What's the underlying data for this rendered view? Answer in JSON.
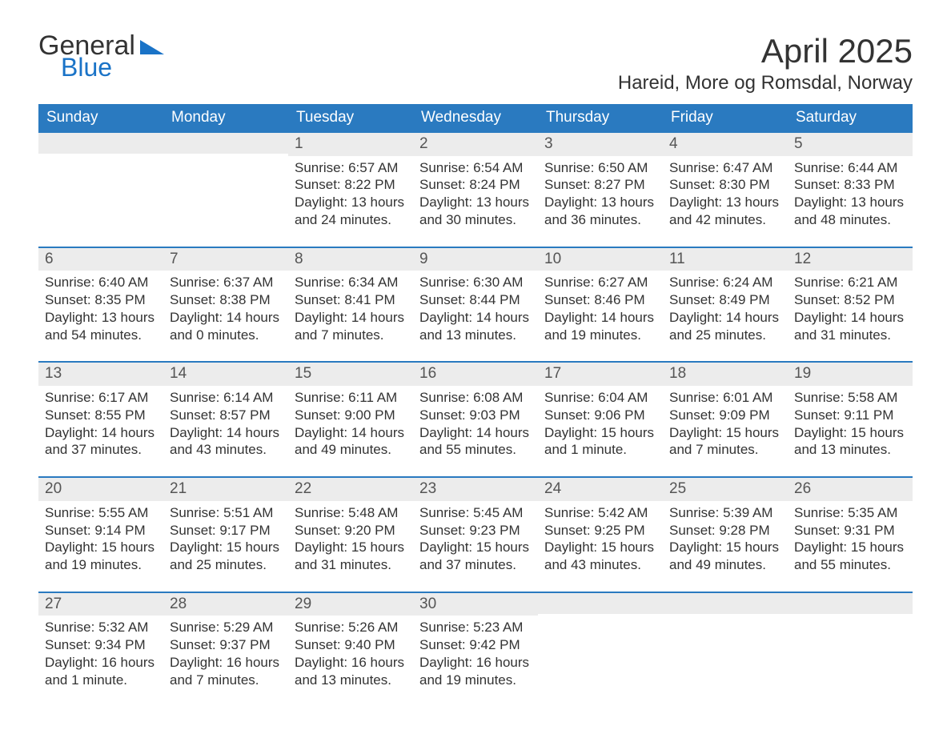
{
  "logo": {
    "general": "General",
    "blue": "Blue"
  },
  "title": "April 2025",
  "location": "Hareid, More og Romsdal, Norway",
  "colors": {
    "header_bg": "#2a7ac0",
    "header_fg": "#ffffff",
    "daynum_bg": "#ececec",
    "row_border": "#2a7ac0",
    "text": "#333333",
    "logo_blue": "#1a73c7"
  },
  "fonts": {
    "title_size_pt": 32,
    "location_size_pt": 18,
    "dow_size_pt": 14,
    "body_size_pt": 13
  },
  "days_of_week": [
    "Sunday",
    "Monday",
    "Tuesday",
    "Wednesday",
    "Thursday",
    "Friday",
    "Saturday"
  ],
  "weeks": [
    [
      {
        "n": "",
        "sunrise": "",
        "sunset": "",
        "daylight": ""
      },
      {
        "n": "",
        "sunrise": "",
        "sunset": "",
        "daylight": ""
      },
      {
        "n": "1",
        "sunrise": "Sunrise: 6:57 AM",
        "sunset": "Sunset: 8:22 PM",
        "daylight": "Daylight: 13 hours and 24 minutes."
      },
      {
        "n": "2",
        "sunrise": "Sunrise: 6:54 AM",
        "sunset": "Sunset: 8:24 PM",
        "daylight": "Daylight: 13 hours and 30 minutes."
      },
      {
        "n": "3",
        "sunrise": "Sunrise: 6:50 AM",
        "sunset": "Sunset: 8:27 PM",
        "daylight": "Daylight: 13 hours and 36 minutes."
      },
      {
        "n": "4",
        "sunrise": "Sunrise: 6:47 AM",
        "sunset": "Sunset: 8:30 PM",
        "daylight": "Daylight: 13 hours and 42 minutes."
      },
      {
        "n": "5",
        "sunrise": "Sunrise: 6:44 AM",
        "sunset": "Sunset: 8:33 PM",
        "daylight": "Daylight: 13 hours and 48 minutes."
      }
    ],
    [
      {
        "n": "6",
        "sunrise": "Sunrise: 6:40 AM",
        "sunset": "Sunset: 8:35 PM",
        "daylight": "Daylight: 13 hours and 54 minutes."
      },
      {
        "n": "7",
        "sunrise": "Sunrise: 6:37 AM",
        "sunset": "Sunset: 8:38 PM",
        "daylight": "Daylight: 14 hours and 0 minutes."
      },
      {
        "n": "8",
        "sunrise": "Sunrise: 6:34 AM",
        "sunset": "Sunset: 8:41 PM",
        "daylight": "Daylight: 14 hours and 7 minutes."
      },
      {
        "n": "9",
        "sunrise": "Sunrise: 6:30 AM",
        "sunset": "Sunset: 8:44 PM",
        "daylight": "Daylight: 14 hours and 13 minutes."
      },
      {
        "n": "10",
        "sunrise": "Sunrise: 6:27 AM",
        "sunset": "Sunset: 8:46 PM",
        "daylight": "Daylight: 14 hours and 19 minutes."
      },
      {
        "n": "11",
        "sunrise": "Sunrise: 6:24 AM",
        "sunset": "Sunset: 8:49 PM",
        "daylight": "Daylight: 14 hours and 25 minutes."
      },
      {
        "n": "12",
        "sunrise": "Sunrise: 6:21 AM",
        "sunset": "Sunset: 8:52 PM",
        "daylight": "Daylight: 14 hours and 31 minutes."
      }
    ],
    [
      {
        "n": "13",
        "sunrise": "Sunrise: 6:17 AM",
        "sunset": "Sunset: 8:55 PM",
        "daylight": "Daylight: 14 hours and 37 minutes."
      },
      {
        "n": "14",
        "sunrise": "Sunrise: 6:14 AM",
        "sunset": "Sunset: 8:57 PM",
        "daylight": "Daylight: 14 hours and 43 minutes."
      },
      {
        "n": "15",
        "sunrise": "Sunrise: 6:11 AM",
        "sunset": "Sunset: 9:00 PM",
        "daylight": "Daylight: 14 hours and 49 minutes."
      },
      {
        "n": "16",
        "sunrise": "Sunrise: 6:08 AM",
        "sunset": "Sunset: 9:03 PM",
        "daylight": "Daylight: 14 hours and 55 minutes."
      },
      {
        "n": "17",
        "sunrise": "Sunrise: 6:04 AM",
        "sunset": "Sunset: 9:06 PM",
        "daylight": "Daylight: 15 hours and 1 minute."
      },
      {
        "n": "18",
        "sunrise": "Sunrise: 6:01 AM",
        "sunset": "Sunset: 9:09 PM",
        "daylight": "Daylight: 15 hours and 7 minutes."
      },
      {
        "n": "19",
        "sunrise": "Sunrise: 5:58 AM",
        "sunset": "Sunset: 9:11 PM",
        "daylight": "Daylight: 15 hours and 13 minutes."
      }
    ],
    [
      {
        "n": "20",
        "sunrise": "Sunrise: 5:55 AM",
        "sunset": "Sunset: 9:14 PM",
        "daylight": "Daylight: 15 hours and 19 minutes."
      },
      {
        "n": "21",
        "sunrise": "Sunrise: 5:51 AM",
        "sunset": "Sunset: 9:17 PM",
        "daylight": "Daylight: 15 hours and 25 minutes."
      },
      {
        "n": "22",
        "sunrise": "Sunrise: 5:48 AM",
        "sunset": "Sunset: 9:20 PM",
        "daylight": "Daylight: 15 hours and 31 minutes."
      },
      {
        "n": "23",
        "sunrise": "Sunrise: 5:45 AM",
        "sunset": "Sunset: 9:23 PM",
        "daylight": "Daylight: 15 hours and 37 minutes."
      },
      {
        "n": "24",
        "sunrise": "Sunrise: 5:42 AM",
        "sunset": "Sunset: 9:25 PM",
        "daylight": "Daylight: 15 hours and 43 minutes."
      },
      {
        "n": "25",
        "sunrise": "Sunrise: 5:39 AM",
        "sunset": "Sunset: 9:28 PM",
        "daylight": "Daylight: 15 hours and 49 minutes."
      },
      {
        "n": "26",
        "sunrise": "Sunrise: 5:35 AM",
        "sunset": "Sunset: 9:31 PM",
        "daylight": "Daylight: 15 hours and 55 minutes."
      }
    ],
    [
      {
        "n": "27",
        "sunrise": "Sunrise: 5:32 AM",
        "sunset": "Sunset: 9:34 PM",
        "daylight": "Daylight: 16 hours and 1 minute."
      },
      {
        "n": "28",
        "sunrise": "Sunrise: 5:29 AM",
        "sunset": "Sunset: 9:37 PM",
        "daylight": "Daylight: 16 hours and 7 minutes."
      },
      {
        "n": "29",
        "sunrise": "Sunrise: 5:26 AM",
        "sunset": "Sunset: 9:40 PM",
        "daylight": "Daylight: 16 hours and 13 minutes."
      },
      {
        "n": "30",
        "sunrise": "Sunrise: 5:23 AM",
        "sunset": "Sunset: 9:42 PM",
        "daylight": "Daylight: 16 hours and 19 minutes."
      },
      {
        "n": "",
        "sunrise": "",
        "sunset": "",
        "daylight": ""
      },
      {
        "n": "",
        "sunrise": "",
        "sunset": "",
        "daylight": ""
      },
      {
        "n": "",
        "sunrise": "",
        "sunset": "",
        "daylight": ""
      }
    ]
  ]
}
